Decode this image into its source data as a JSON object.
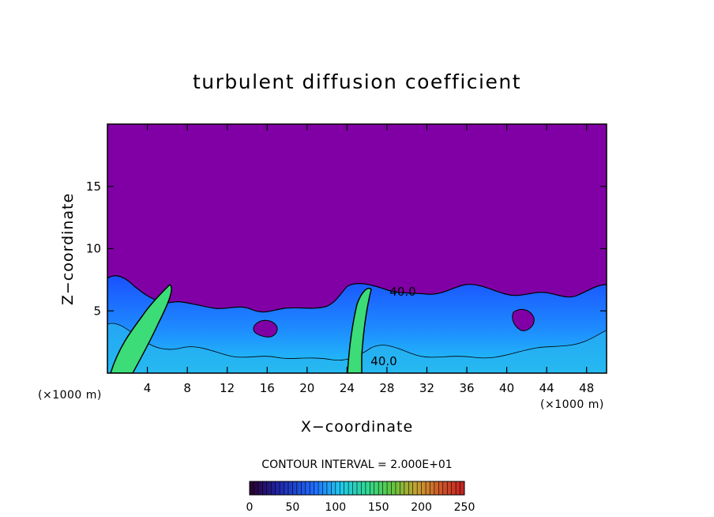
{
  "chart_data": {
    "type": "heatmap",
    "title": "turbulent diffusion coefficient",
    "xlabel": "X−coordinate",
    "ylabel": "Z−coordinate",
    "x_unit_left": "(×1000 m)",
    "x_unit_right": "(×1000 m)",
    "xlim": [
      0,
      50
    ],
    "ylim": [
      0,
      20
    ],
    "x_ticks": [
      4,
      8,
      12,
      16,
      20,
      24,
      28,
      32,
      36,
      40,
      44,
      48
    ],
    "y_ticks": [
      5,
      10,
      15
    ],
    "contour_interval_text": "CONTOUR INTERVAL = 2.000E+01",
    "contour_label": "40.0",
    "contour_label_2": "40.0",
    "colorbar": {
      "ticks": [
        0,
        50,
        100,
        150,
        200,
        250
      ],
      "range": [
        0,
        250
      ]
    },
    "colors": {
      "background_field": "#8000a6",
      "low_level_blue": "#1e4cff",
      "mid_cyan": "#28c8f0",
      "high_green": "#3cdc78"
    }
  }
}
